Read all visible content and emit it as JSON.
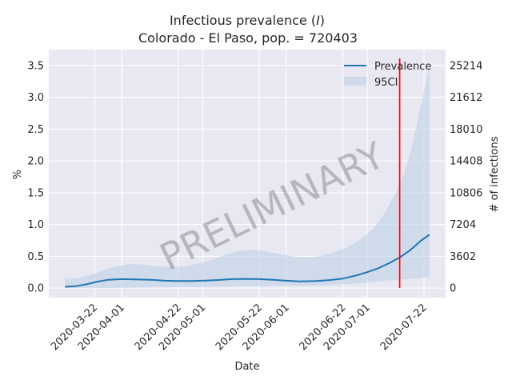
{
  "chart_data": {
    "type": "line",
    "title_line1_prefix": "Infectious prevalence (",
    "title_line1_var": "I",
    "title_line1_suffix": ")",
    "title_line2": "Colorado - El Paso, pop. = 720403",
    "xlabel": "Date",
    "ylabel_left": "%",
    "ylabel_right": "# of infections",
    "ylim": [
      -0.15,
      3.75
    ],
    "yticks_left": [
      0.0,
      0.5,
      1.0,
      1.5,
      2.0,
      2.5,
      3.0,
      3.5
    ],
    "yticks_left_labels": [
      "0.0",
      "0.5",
      "1.0",
      "1.5",
      "2.0",
      "2.5",
      "3.0",
      "3.5"
    ],
    "yticks_right_labels": [
      "0",
      "3602",
      "7204",
      "10806",
      "14408",
      "18010",
      "21612",
      "25214"
    ],
    "xticks": [
      "2020-03-22",
      "2020-04-01",
      "2020-04-22",
      "2020-05-01",
      "2020-05-22",
      "2020-06-01",
      "2020-06-22",
      "2020-07-01",
      "2020-07-22"
    ],
    "xlim": [
      "2020-03-05",
      "2020-07-30"
    ],
    "vline_date": "2020-07-13",
    "vline_color": "#ff0000",
    "line_color": "#1f77b4",
    "band_color": "#b9cde6",
    "watermark": "PRELIMINARY",
    "legend": {
      "position": "top-right",
      "line_label": "Prevalence",
      "band_label": "95CI"
    },
    "grid": true,
    "series": [
      {
        "name": "Prevalence",
        "points": [
          [
            "2020-03-11",
            0.02
          ],
          [
            "2020-03-15",
            0.03
          ],
          [
            "2020-03-19",
            0.06
          ],
          [
            "2020-03-23",
            0.1
          ],
          [
            "2020-03-27",
            0.13
          ],
          [
            "2020-04-01",
            0.14
          ],
          [
            "2020-04-06",
            0.135
          ],
          [
            "2020-04-12",
            0.13
          ],
          [
            "2020-04-17",
            0.115
          ],
          [
            "2020-04-22",
            0.11
          ],
          [
            "2020-04-27",
            0.11
          ],
          [
            "2020-05-01",
            0.115
          ],
          [
            "2020-05-06",
            0.125
          ],
          [
            "2020-05-12",
            0.14
          ],
          [
            "2020-05-17",
            0.145
          ],
          [
            "2020-05-22",
            0.14
          ],
          [
            "2020-05-27",
            0.13
          ],
          [
            "2020-06-01",
            0.115
          ],
          [
            "2020-06-06",
            0.105
          ],
          [
            "2020-06-12",
            0.11
          ],
          [
            "2020-06-17",
            0.125
          ],
          [
            "2020-06-22",
            0.15
          ],
          [
            "2020-06-27",
            0.2
          ],
          [
            "2020-07-01",
            0.25
          ],
          [
            "2020-07-05",
            0.31
          ],
          [
            "2020-07-09",
            0.39
          ],
          [
            "2020-07-13",
            0.48
          ],
          [
            "2020-07-17",
            0.6
          ],
          [
            "2020-07-21",
            0.75
          ],
          [
            "2020-07-24",
            0.84
          ]
        ]
      }
    ],
    "ci_band": {
      "lower": [
        [
          "2020-03-11",
          0.0
        ],
        [
          "2020-03-27",
          0.0
        ],
        [
          "2020-04-12",
          0.01
        ],
        [
          "2020-05-01",
          0.02
        ],
        [
          "2020-05-22",
          0.03
        ],
        [
          "2020-06-12",
          0.04
        ],
        [
          "2020-06-27",
          0.07
        ],
        [
          "2020-07-09",
          0.12
        ],
        [
          "2020-07-24",
          0.17
        ]
      ],
      "upper": [
        [
          "2020-03-11",
          0.16
        ],
        [
          "2020-03-12",
          0.14
        ],
        [
          "2020-03-16",
          0.16
        ],
        [
          "2020-03-20",
          0.2
        ],
        [
          "2020-03-25",
          0.28
        ],
        [
          "2020-03-30",
          0.34
        ],
        [
          "2020-04-04",
          0.38
        ],
        [
          "2020-04-09",
          0.37
        ],
        [
          "2020-04-14",
          0.34
        ],
        [
          "2020-04-19",
          0.33
        ],
        [
          "2020-04-24",
          0.34
        ],
        [
          "2020-04-29",
          0.38
        ],
        [
          "2020-05-04",
          0.44
        ],
        [
          "2020-05-09",
          0.52
        ],
        [
          "2020-05-14",
          0.58
        ],
        [
          "2020-05-19",
          0.6
        ],
        [
          "2020-05-24",
          0.58
        ],
        [
          "2020-05-29",
          0.54
        ],
        [
          "2020-06-03",
          0.5
        ],
        [
          "2020-06-08",
          0.48
        ],
        [
          "2020-06-13",
          0.5
        ],
        [
          "2020-06-18",
          0.55
        ],
        [
          "2020-06-23",
          0.63
        ],
        [
          "2020-06-28",
          0.75
        ],
        [
          "2020-07-03",
          0.92
        ],
        [
          "2020-07-07",
          1.15
        ],
        [
          "2020-07-11",
          1.45
        ],
        [
          "2020-07-15",
          1.85
        ],
        [
          "2020-07-18",
          2.3
        ],
        [
          "2020-07-21",
          2.9
        ],
        [
          "2020-07-24",
          3.5
        ]
      ]
    }
  }
}
